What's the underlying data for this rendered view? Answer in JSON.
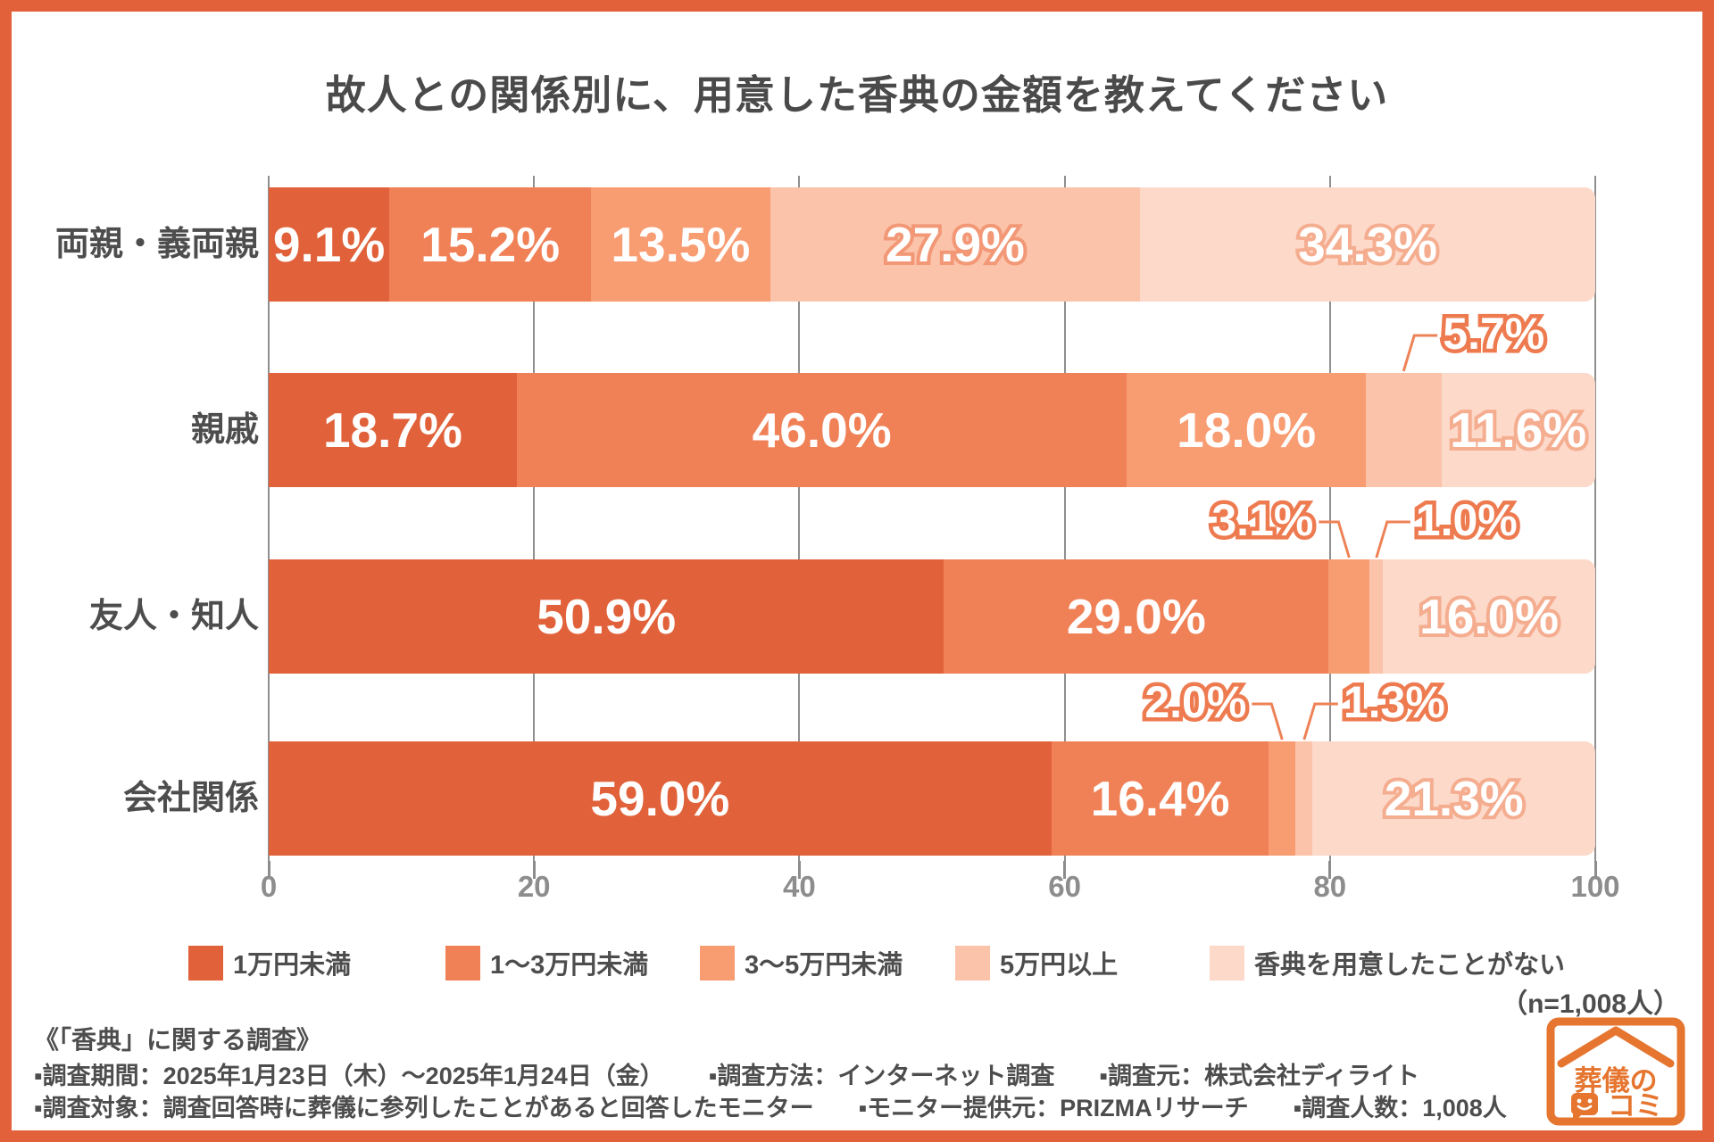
{
  "page": {
    "frame_color": "#e2613b",
    "background": "#ffffff"
  },
  "title": "故人との関係別に、用意した香典の金額を教えてください",
  "n_label": "（n=1,008人）",
  "chart_data": {
    "type": "bar",
    "stacked": true,
    "orientation": "horizontal",
    "grid": "vertical",
    "legend_position": "bottom",
    "title": "故人との関係別に、用意した香典の金額を教えてください",
    "categories": [
      "両親・義両親",
      "親戚",
      "友人・知人",
      "会社関係"
    ],
    "series": [
      {
        "name": "1万円未満",
        "color": "#e1623a",
        "values": [
          9.1,
          18.7,
          50.9,
          59.0
        ]
      },
      {
        "name": "1〜3万円未満",
        "color": "#f08157",
        "values": [
          15.2,
          46.0,
          29.0,
          16.4
        ]
      },
      {
        "name": "3〜5万円未満",
        "color": "#f89c72",
        "values": [
          13.5,
          18.0,
          3.1,
          2.0
        ]
      },
      {
        "name": "5万円以上",
        "color": "#fbc3a9",
        "values": [
          27.9,
          5.7,
          1.0,
          1.3
        ]
      },
      {
        "name": "香典を用意したことがない",
        "color": "#fcd9c9",
        "values": [
          34.3,
          11.6,
          16.0,
          21.3
        ]
      }
    ],
    "x_axis": {
      "ticks": [
        "0",
        "20",
        "40",
        "60",
        "80",
        "100"
      ],
      "max": 100
    },
    "value_suffix": "%",
    "callouts": [
      {
        "category_index": 1,
        "series_index": 3,
        "side": "right"
      },
      {
        "category_index": 2,
        "series_index": 2,
        "side": "left"
      },
      {
        "category_index": 2,
        "series_index": 3,
        "side": "right"
      },
      {
        "category_index": 3,
        "series_index": 2,
        "side": "left"
      },
      {
        "category_index": 3,
        "series_index": 3,
        "side": "right"
      }
    ],
    "label_colors": {
      "solid_fill": "#ffffff",
      "outline_on_series_3": "#f29877",
      "outline_on_series_4": "#f5ad90",
      "callout_stroke": "#ee7b50",
      "leader_line": "#ee8257"
    }
  },
  "footer": {
    "heading": "《「香典」に関する調査》",
    "line1": [
      "▪調査期間：2025年1月23日（木）〜2025年1月24日（金）",
      "▪調査方法：インターネット調査",
      "▪調査元：株式会社ディライト"
    ],
    "line2": [
      "▪調査対象：調査回答時に葬儀に参列したことがあると回答したモニター",
      "▪モニター提供元：PRIZMAリサーチ",
      "▪調査人数：1,008人"
    ]
  },
  "logo": {
    "line1": "葬儀の",
    "line2": "コミ",
    "color": "#e5752f"
  }
}
